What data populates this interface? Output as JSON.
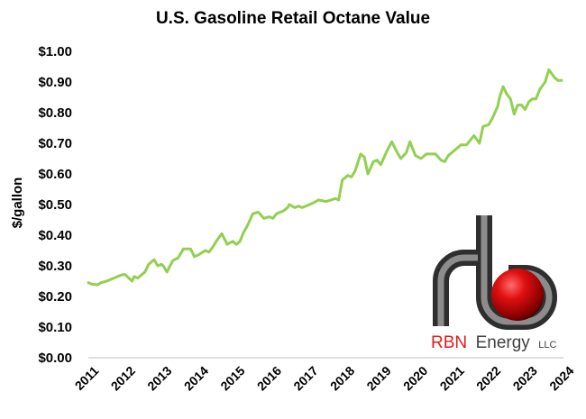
{
  "chart_data": {
    "type": "line",
    "title": "U.S. Gasoline Retail Octane Value",
    "ylabel": "$/gallon",
    "xlabel": "",
    "ylim": [
      0,
      1.0
    ],
    "xlim": [
      2011,
      2024
    ],
    "yticks": [
      "$0.00",
      "$0.10",
      "$0.20",
      "$0.30",
      "$0.40",
      "$0.50",
      "$0.60",
      "$0.70",
      "$0.80",
      "$0.90",
      "$1.00"
    ],
    "xticks": [
      "2011",
      "2012",
      "2013",
      "2014",
      "2015",
      "2016",
      "2017",
      "2018",
      "2019",
      "2020",
      "2021",
      "2022",
      "2023",
      "2024"
    ],
    "grid": false,
    "series": [
      {
        "color": "#92d050",
        "x": [
          2011.0,
          2011.1,
          2011.25,
          2011.35,
          2011.5,
          2011.7,
          2011.8,
          2011.9,
          2012.0,
          2012.2,
          2012.25,
          2012.35,
          2012.45,
          2012.55,
          2012.65,
          2012.8,
          2012.9,
          2013.0,
          2013.05,
          2013.15,
          2013.3,
          2013.35,
          2013.45,
          2013.6,
          2013.8,
          2013.9,
          2014.0,
          2014.2,
          2014.3,
          2014.4,
          2014.5,
          2014.65,
          2014.8,
          2014.95,
          2015.05,
          2015.15,
          2015.25,
          2015.35,
          2015.5,
          2015.65,
          2015.8,
          2015.95,
          2016.05,
          2016.15,
          2016.35,
          2016.45,
          2016.5,
          2016.65,
          2016.75,
          2016.85,
          2016.95,
          2017.05,
          2017.15,
          2017.3,
          2017.5,
          2017.65,
          2017.75,
          2017.85,
          2017.95,
          2018.1,
          2018.2,
          2018.3,
          2018.45,
          2018.55,
          2018.65,
          2018.8,
          2018.9,
          2019.0,
          2019.15,
          2019.3,
          2019.45,
          2019.55,
          2019.7,
          2019.8,
          2019.95,
          2020.1,
          2020.25,
          2020.35,
          2020.5,
          2020.65,
          2020.75,
          2020.85,
          2021.0,
          2021.2,
          2021.35,
          2021.55,
          2021.7,
          2021.8,
          2021.95,
          2022.05,
          2022.2,
          2022.25,
          2022.35,
          2022.45,
          2022.55,
          2022.65,
          2022.75,
          2022.85,
          2022.95,
          2023.05,
          2023.15,
          2023.25,
          2023.35,
          2023.5,
          2023.6,
          2023.75,
          2023.85,
          2023.95
        ],
        "y": [
          0.245,
          0.24,
          0.238,
          0.245,
          0.25,
          0.26,
          0.265,
          0.27,
          0.272,
          0.25,
          0.265,
          0.26,
          0.27,
          0.28,
          0.305,
          0.32,
          0.3,
          0.305,
          0.3,
          0.28,
          0.315,
          0.32,
          0.325,
          0.355,
          0.355,
          0.33,
          0.335,
          0.35,
          0.345,
          0.36,
          0.38,
          0.405,
          0.37,
          0.38,
          0.37,
          0.38,
          0.41,
          0.43,
          0.47,
          0.475,
          0.455,
          0.46,
          0.455,
          0.47,
          0.48,
          0.49,
          0.5,
          0.49,
          0.495,
          0.49,
          0.495,
          0.5,
          0.505,
          0.515,
          0.51,
          0.515,
          0.52,
          0.515,
          0.58,
          0.595,
          0.59,
          0.61,
          0.665,
          0.655,
          0.6,
          0.64,
          0.645,
          0.63,
          0.67,
          0.705,
          0.67,
          0.65,
          0.67,
          0.705,
          0.66,
          0.65,
          0.665,
          0.665,
          0.665,
          0.645,
          0.64,
          0.66,
          0.675,
          0.695,
          0.695,
          0.725,
          0.7,
          0.755,
          0.76,
          0.78,
          0.82,
          0.85,
          0.885,
          0.86,
          0.845,
          0.795,
          0.825,
          0.825,
          0.81,
          0.835,
          0.845,
          0.845,
          0.875,
          0.9,
          0.94,
          0.915,
          0.905,
          0.905
        ]
      }
    ]
  },
  "logo": {
    "brand": "RBN",
    "name": "Energy",
    "suffix": "LLC"
  }
}
